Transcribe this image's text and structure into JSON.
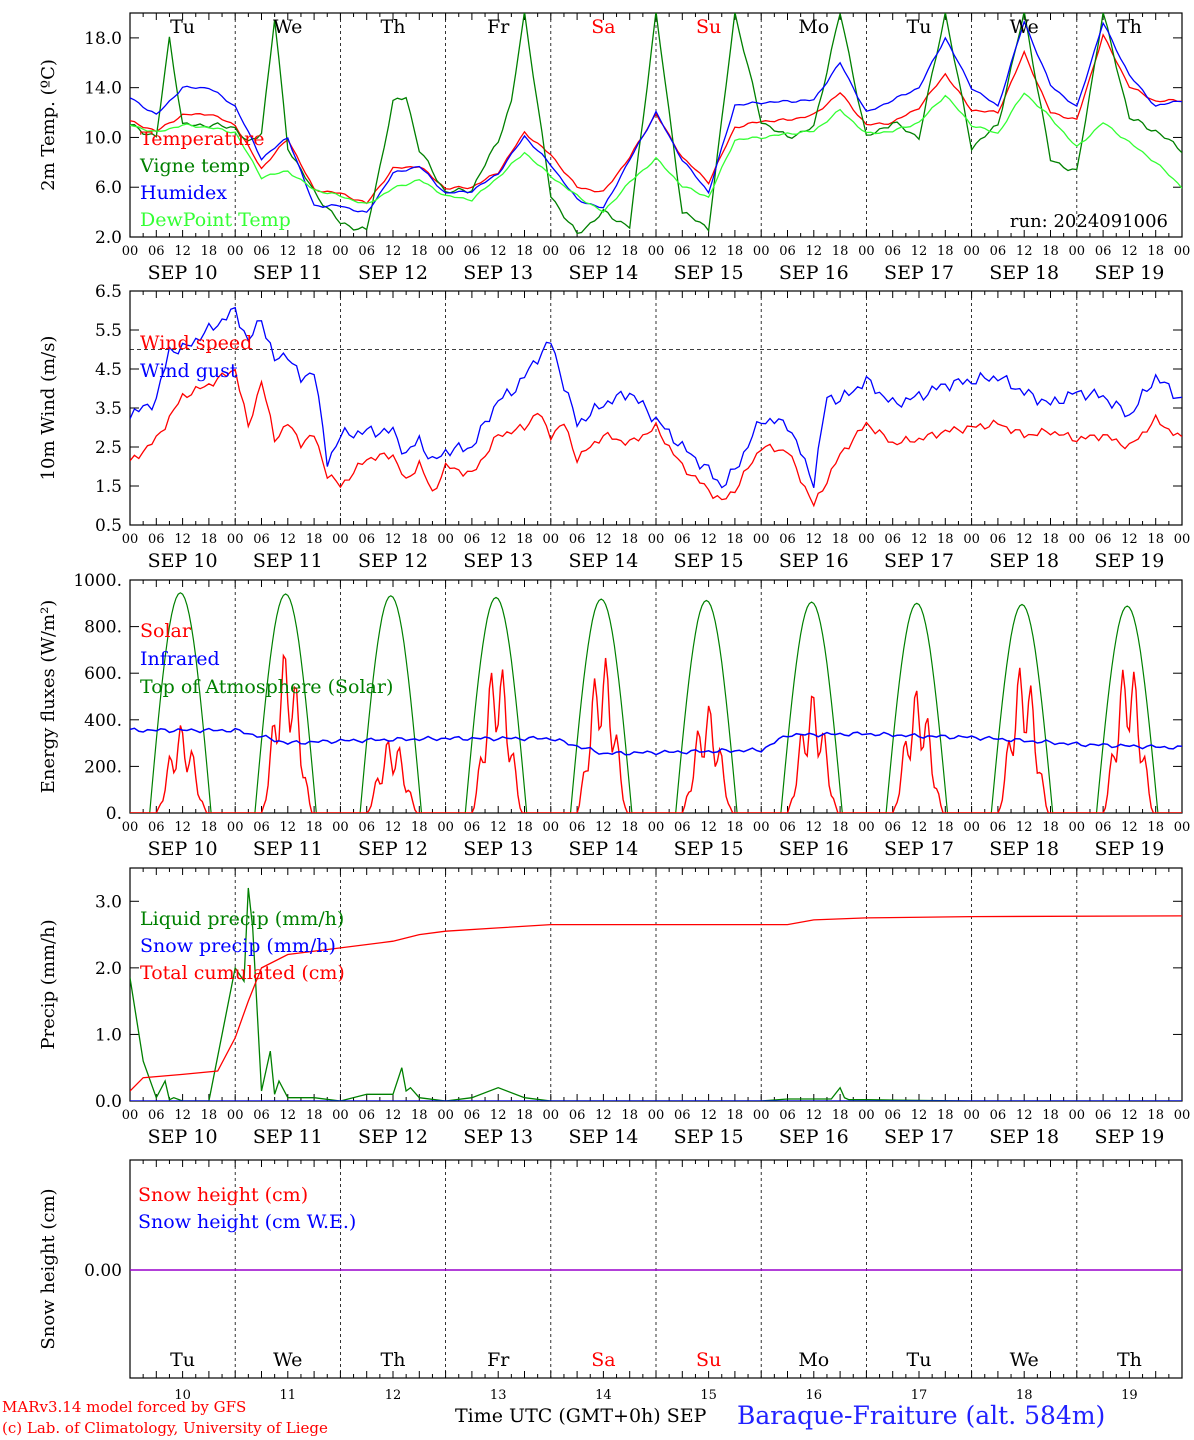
{
  "colors": {
    "red": "#ff0000",
    "dark_green": "#008000",
    "blue": "#0000ff",
    "light_green": "#33ff33",
    "purple": "#9900cc",
    "weekend": "#ff0000",
    "station": "#2222ff"
  },
  "x_hour_labels": [
    "00",
    "06",
    "12",
    "18"
  ],
  "x_hour_end_label": "00",
  "date_labels": [
    "SEP 10",
    "SEP 11",
    "SEP 12",
    "SEP 13",
    "SEP 14",
    "SEP 15",
    "SEP 16",
    "SEP 17",
    "SEP 18",
    "SEP 19"
  ],
  "weekdays": [
    {
      "label": "Tu",
      "weekend": false
    },
    {
      "label": "We",
      "weekend": false
    },
    {
      "label": "Th",
      "weekend": false
    },
    {
      "label": "Fr",
      "weekend": false
    },
    {
      "label": "Sa",
      "weekend": true
    },
    {
      "label": "Su",
      "weekend": true
    },
    {
      "label": "Mo",
      "weekend": false
    },
    {
      "label": "Tu",
      "weekend": false
    },
    {
      "label": "We",
      "weekend": false
    },
    {
      "label": "Th",
      "weekend": false
    }
  ],
  "day_numbers": [
    "10",
    "11",
    "12",
    "13",
    "14",
    "15",
    "16",
    "17",
    "18",
    "19"
  ],
  "footer": {
    "credit_line1": "MARv3.14 model forced by GFS",
    "credit_line2": "(c) Lab. of Climatology, University of Liege",
    "xlabel": "Time UTC (GMT+0h) SEP",
    "station": "Baraque-Fraiture (alt. 584m)"
  },
  "chart_data": [
    {
      "type": "line",
      "ylabel": "2m Temp. (ºC)",
      "ylim": [
        2.0,
        20.0
      ],
      "yticks": [
        "2.0",
        "6.0",
        "10.0",
        "14.0",
        "18.0"
      ],
      "run_label": "run: 2024091006",
      "x_unit": "hours since 2024-09-10 00 UTC",
      "series": [
        {
          "name": "Temperature",
          "color": "red",
          "x": [
            0,
            6,
            12,
            18,
            24,
            30,
            36,
            42,
            48,
            54,
            60,
            66,
            72,
            78,
            84,
            90,
            96,
            102,
            108,
            114,
            120,
            126,
            132,
            138,
            144,
            150,
            156,
            162,
            168,
            174,
            180,
            186,
            192,
            198,
            204,
            210,
            216,
            222,
            228,
            234,
            240
          ],
          "y": [
            11.3,
            10.5,
            11.8,
            11.9,
            11.0,
            7.5,
            9.9,
            5.8,
            5.5,
            4.7,
            7.5,
            7.7,
            5.9,
            6.0,
            7.2,
            10.4,
            8.6,
            6.0,
            5.6,
            8.4,
            11.9,
            8.4,
            6.4,
            10.8,
            11.3,
            11.4,
            11.8,
            13.6,
            11.0,
            11.2,
            12.4,
            15.1,
            12.2,
            12.0,
            16.8,
            12.0,
            11.4,
            18.2,
            14.1,
            12.9,
            13.0
          ]
        },
        {
          "name": "Vigne temp",
          "color": "dark_green",
          "x": [
            0,
            6,
            9,
            12,
            18,
            24,
            27,
            30,
            33,
            36,
            42,
            48,
            54,
            60,
            63,
            66,
            72,
            78,
            84,
            87,
            90,
            96,
            102,
            108,
            114,
            120,
            126,
            132,
            138,
            144,
            150,
            156,
            162,
            168,
            174,
            180,
            186,
            192,
            198,
            204,
            210,
            216,
            222,
            228,
            234,
            240
          ],
          "y": [
            11.0,
            10.0,
            18.0,
            11.0,
            11.0,
            10.8,
            9.5,
            10.4,
            19.5,
            9.2,
            5.6,
            3.1,
            2.5,
            12.8,
            13.3,
            9.0,
            5.6,
            5.8,
            9.8,
            12.8,
            20.0,
            5.3,
            2.2,
            4.0,
            2.8,
            20.0,
            4.0,
            2.7,
            20.0,
            11.3,
            10.0,
            10.8,
            20.0,
            10.0,
            11.2,
            10.0,
            20.0,
            9.2,
            11.0,
            20.0,
            8.2,
            7.2,
            20.0,
            11.6,
            10.5,
            9.0
          ]
        },
        {
          "name": "Humidex",
          "color": "blue",
          "x": [
            0,
            6,
            12,
            18,
            24,
            30,
            36,
            42,
            48,
            54,
            60,
            66,
            72,
            78,
            84,
            90,
            96,
            102,
            108,
            114,
            120,
            126,
            132,
            138,
            144,
            150,
            156,
            162,
            168,
            174,
            180,
            186,
            192,
            198,
            204,
            210,
            216,
            222,
            228,
            234,
            240
          ],
          "y": [
            13.2,
            11.8,
            14.0,
            14.0,
            12.5,
            8.3,
            10.0,
            4.5,
            4.5,
            3.9,
            7.1,
            7.7,
            5.5,
            5.7,
            7.1,
            10.1,
            7.8,
            5.0,
            4.3,
            8.2,
            12.0,
            8.2,
            5.6,
            12.6,
            12.8,
            12.9,
            13.0,
            16.0,
            12.0,
            13.0,
            14.0,
            18.0,
            14.0,
            12.5,
            19.3,
            14.2,
            12.4,
            19.2,
            15.0,
            12.5,
            13.0
          ]
        },
        {
          "name": "DewPoint Temp",
          "color": "light_green",
          "x": [
            0,
            6,
            12,
            18,
            24,
            30,
            36,
            42,
            48,
            54,
            60,
            66,
            72,
            78,
            84,
            90,
            96,
            102,
            108,
            114,
            120,
            126,
            132,
            138,
            144,
            150,
            156,
            162,
            168,
            174,
            180,
            186,
            192,
            198,
            204,
            210,
            216,
            222,
            228,
            234,
            240
          ],
          "y": [
            11.0,
            10.4,
            11.0,
            10.8,
            10.4,
            6.8,
            7.3,
            5.8,
            5.3,
            4.6,
            5.9,
            6.6,
            5.3,
            5.0,
            6.8,
            8.8,
            6.9,
            5.3,
            4.0,
            6.4,
            8.3,
            6.1,
            5.2,
            9.8,
            10.0,
            10.3,
            10.5,
            12.2,
            10.3,
            10.5,
            11.2,
            13.4,
            11.0,
            10.3,
            13.6,
            11.6,
            9.2,
            11.2,
            9.6,
            8.0,
            6.0
          ]
        }
      ]
    },
    {
      "type": "line",
      "ylabel": "10m Wind (m/s)",
      "ylim": [
        0.5,
        6.5
      ],
      "yticks": [
        "0.5",
        "1.5",
        "2.5",
        "3.5",
        "4.5",
        "5.5",
        "6.5"
      ],
      "reference_line": 5.0,
      "x_unit": "hours since 2024-09-10 00 UTC",
      "series": [
        {
          "name": "Wind speed",
          "color": "red",
          "x": [
            0,
            6,
            12,
            18,
            24,
            27,
            30,
            33,
            36,
            39,
            42,
            45,
            48,
            54,
            60,
            63,
            66,
            69,
            72,
            78,
            84,
            90,
            93,
            96,
            99,
            102,
            108,
            114,
            120,
            126,
            132,
            135,
            138,
            144,
            150,
            156,
            162,
            168,
            174,
            180,
            186,
            192,
            198,
            204,
            210,
            216,
            222,
            228,
            234,
            240
          ],
          "y": [
            2.1,
            2.7,
            3.8,
            4.1,
            4.5,
            3.0,
            4.2,
            2.7,
            3.1,
            2.6,
            2.8,
            1.8,
            1.5,
            2.2,
            2.3,
            1.6,
            2.1,
            1.3,
            2.0,
            1.8,
            2.8,
            3.0,
            3.4,
            2.8,
            3.1,
            2.2,
            2.8,
            2.6,
            3.0,
            2.0,
            1.4,
            1.1,
            1.4,
            2.5,
            2.4,
            1.0,
            2.3,
            3.1,
            2.6,
            2.7,
            2.9,
            3.0,
            3.1,
            2.8,
            2.9,
            2.7,
            2.8,
            2.5,
            3.2,
            2.7
          ]
        },
        {
          "name": "Wind gust",
          "color": "blue",
          "x": [
            0,
            6,
            9,
            12,
            18,
            24,
            27,
            30,
            33,
            36,
            39,
            42,
            45,
            48,
            54,
            60,
            63,
            66,
            69,
            72,
            78,
            84,
            87,
            90,
            93,
            96,
            99,
            102,
            108,
            114,
            120,
            126,
            132,
            135,
            138,
            144,
            150,
            156,
            159,
            162,
            168,
            174,
            180,
            186,
            192,
            198,
            204,
            210,
            216,
            222,
            228,
            234,
            240
          ],
          "y": [
            3.3,
            3.7,
            5.0,
            5.0,
            5.5,
            6.0,
            5.2,
            5.8,
            4.7,
            4.9,
            4.2,
            4.5,
            2.1,
            2.8,
            2.9,
            2.9,
            2.3,
            2.7,
            2.1,
            2.4,
            2.5,
            3.7,
            3.9,
            4.3,
            4.8,
            5.2,
            4.1,
            3.1,
            3.6,
            3.9,
            3.2,
            2.5,
            1.9,
            1.5,
            1.9,
            3.2,
            3.1,
            1.6,
            3.8,
            3.7,
            4.2,
            3.6,
            3.8,
            4.1,
            4.2,
            4.3,
            3.9,
            3.6,
            3.9,
            3.8,
            3.3,
            4.3,
            3.7
          ]
        }
      ]
    },
    {
      "type": "line",
      "ylabel": "Energy fluxes (W/m²)",
      "ylim": [
        0,
        1000
      ],
      "yticks": [
        "0.",
        "200.",
        "400.",
        "600.",
        "800.",
        "1000."
      ],
      "x_unit": "hours since 2024-09-10 00 UTC",
      "daily_peaks_toa": [
        945,
        940,
        932,
        925,
        918,
        912,
        905,
        900,
        895,
        888
      ],
      "daily_peaks_solar": [
        380,
        710,
        330,
        670,
        690,
        470,
        520,
        540,
        650,
        670
      ],
      "series": [
        {
          "name": "Solar",
          "color": "red"
        },
        {
          "name": "Infrared",
          "color": "blue",
          "x": [
            0,
            24,
            36,
            48,
            72,
            96,
            108,
            120,
            144,
            150,
            168,
            180,
            192,
            216,
            240
          ],
          "y": [
            355,
            355,
            300,
            310,
            320,
            320,
            255,
            260,
            270,
            335,
            340,
            330,
            325,
            295,
            280
          ]
        },
        {
          "name": "Top of Atmosphere (Solar)",
          "color": "dark_green"
        }
      ]
    },
    {
      "type": "line",
      "ylabel": "Precip (mm/h)",
      "ylim": [
        0,
        3.5
      ],
      "yticks": [
        "0.0",
        "1.0",
        "2.0",
        "3.0"
      ],
      "x_unit": "hours since 2024-09-10 00 UTC",
      "series": [
        {
          "name": "Liquid precip (mm/h)",
          "color": "dark_green",
          "x": [
            0,
            3,
            6,
            8,
            9,
            10,
            12,
            18,
            24,
            26,
            27,
            28,
            30,
            32,
            33,
            34,
            36,
            42,
            48,
            54,
            60,
            62,
            63,
            64,
            66,
            72,
            78,
            84,
            90,
            96,
            108,
            120,
            144,
            150,
            160,
            162,
            163,
            164,
            168,
            192,
            240
          ],
          "y": [
            1.85,
            0.6,
            0.05,
            0.3,
            0.02,
            0.05,
            0.0,
            0.0,
            2.0,
            1.8,
            3.2,
            2.6,
            0.15,
            0.75,
            0.1,
            0.3,
            0.05,
            0.05,
            0.0,
            0.1,
            0.1,
            0.5,
            0.15,
            0.2,
            0.05,
            0.0,
            0.05,
            0.2,
            0.05,
            0.0,
            0.0,
            0.0,
            0.0,
            0.03,
            0.03,
            0.2,
            0.05,
            0.02,
            0.02,
            0.0,
            0.0
          ]
        },
        {
          "name": "Snow precip (mm/h)",
          "color": "blue",
          "x": [
            0,
            240
          ],
          "y": [
            0,
            0
          ]
        },
        {
          "name": "Total cumulated (cm)",
          "color": "red",
          "x": [
            0,
            3,
            12,
            20,
            24,
            27,
            30,
            36,
            48,
            60,
            66,
            72,
            84,
            96,
            108,
            120,
            144,
            150,
            156,
            168,
            192,
            240
          ],
          "y": [
            0.15,
            0.35,
            0.4,
            0.45,
            0.95,
            1.5,
            2.0,
            2.2,
            2.3,
            2.4,
            2.5,
            2.55,
            2.6,
            2.65,
            2.65,
            2.65,
            2.65,
            2.65,
            2.72,
            2.75,
            2.77,
            2.78
          ]
        }
      ]
    },
    {
      "type": "line",
      "ylabel": "Snow height (cm)",
      "yticks": [
        "0.00"
      ],
      "x_unit": "hours since 2024-09-10 00 UTC",
      "series": [
        {
          "name": "Snow height (cm)",
          "color": "red",
          "x": [
            0,
            240
          ],
          "y": [
            0,
            0
          ]
        },
        {
          "name": "Snow height (cm W.E.)",
          "color": "blue",
          "x": [
            0,
            240
          ],
          "y": [
            0,
            0
          ]
        }
      ]
    }
  ]
}
